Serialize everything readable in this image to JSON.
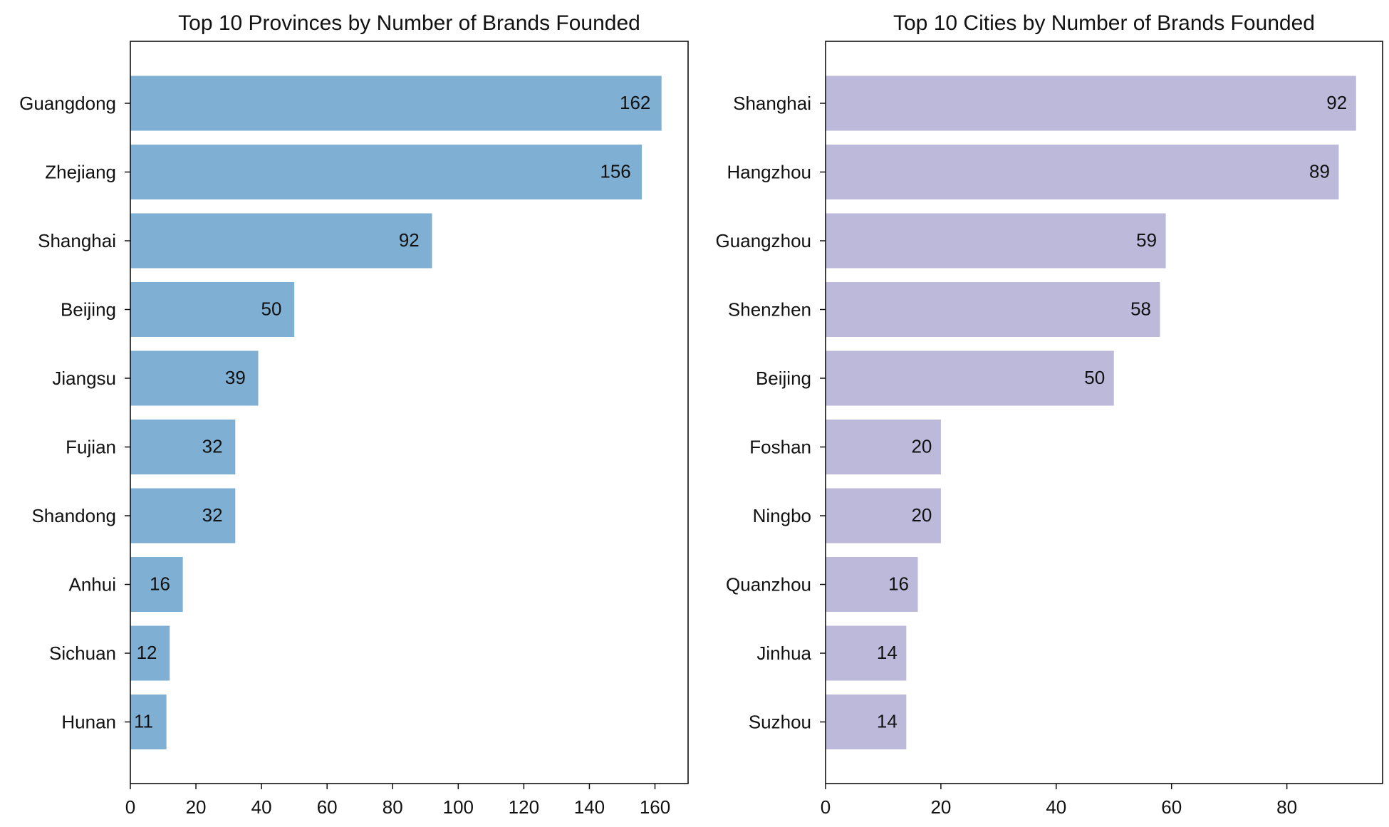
{
  "chart_data": [
    {
      "type": "bar",
      "orientation": "horizontal",
      "title": "Top 10 Provinces by Number of Brands Founded",
      "xlabel": "",
      "ylabel": "",
      "categories": [
        "Guangdong",
        "Zhejiang",
        "Shanghai",
        "Beijing",
        "Jiangsu",
        "Fujian",
        "Shandong",
        "Anhui",
        "Sichuan",
        "Hunan"
      ],
      "values": [
        162,
        156,
        92,
        50,
        39,
        32,
        32,
        16,
        12,
        11
      ],
      "xlim": [
        0,
        170.1
      ],
      "xticks": [
        0,
        20,
        40,
        60,
        80,
        100,
        120,
        140,
        160
      ],
      "color": "#7fafd3",
      "data_labels": true,
      "grid": false,
      "legend": "none"
    },
    {
      "type": "bar",
      "orientation": "horizontal",
      "title": "Top 10 Cities by Number of Brands Founded",
      "xlabel": "",
      "ylabel": "",
      "categories": [
        "Shanghai",
        "Hangzhou",
        "Guangzhou",
        "Shenzhen",
        "Beijing",
        "Foshan",
        "Ningbo",
        "Quanzhou",
        "Jinhua",
        "Suzhou"
      ],
      "values": [
        92,
        89,
        59,
        58,
        50,
        20,
        20,
        16,
        14,
        14
      ],
      "xlim": [
        0,
        96.6
      ],
      "xticks": [
        0,
        20,
        40,
        60,
        80
      ],
      "color": "#bdb9da",
      "data_labels": true,
      "grid": false,
      "legend": "none"
    }
  ]
}
